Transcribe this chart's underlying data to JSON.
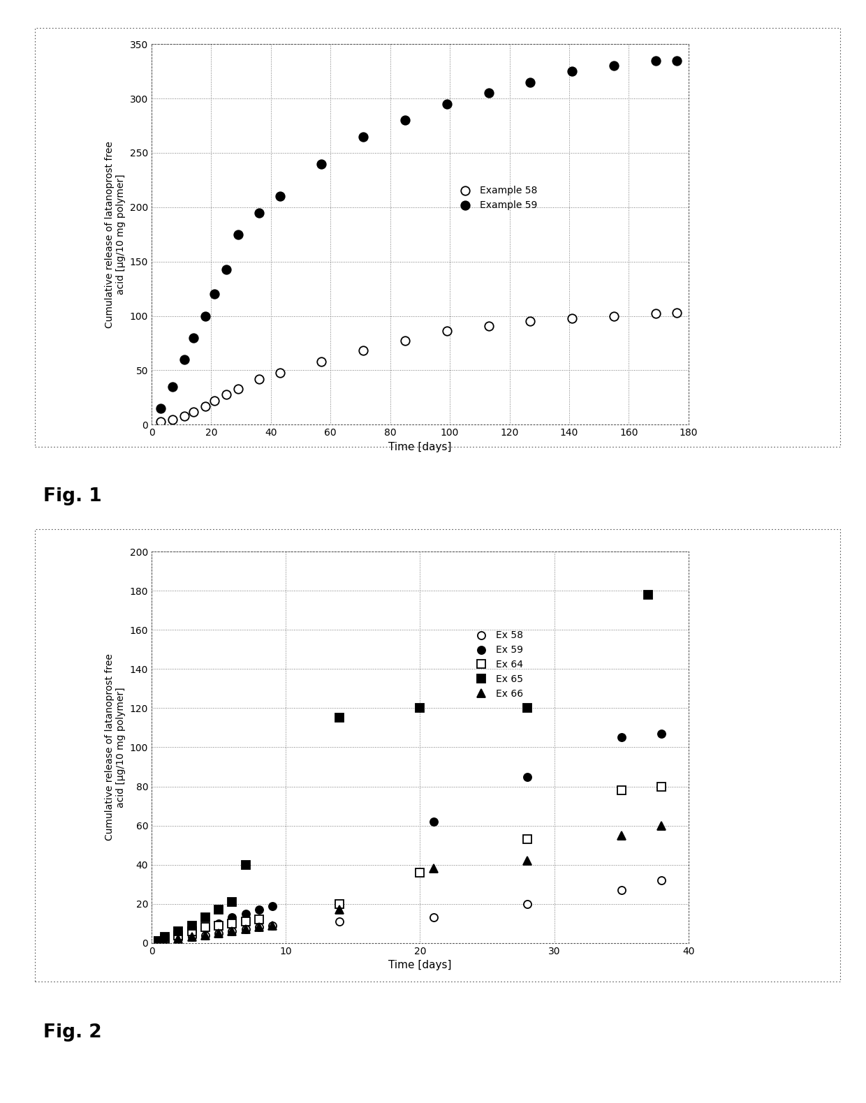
{
  "fig1": {
    "ex58_x": [
      3,
      7,
      11,
      14,
      18,
      21,
      25,
      29,
      36,
      43,
      57,
      71,
      85,
      99,
      113,
      127,
      141,
      155,
      169,
      176
    ],
    "ex58_y": [
      3,
      5,
      8,
      12,
      17,
      22,
      28,
      33,
      42,
      48,
      58,
      68,
      77,
      86,
      91,
      95,
      98,
      100,
      102,
      103
    ],
    "ex59_x": [
      3,
      7,
      11,
      14,
      18,
      21,
      25,
      29,
      36,
      43,
      57,
      71,
      85,
      99,
      113,
      127,
      141,
      155,
      169,
      176
    ],
    "ex59_y": [
      15,
      35,
      60,
      80,
      100,
      120,
      143,
      175,
      195,
      210,
      240,
      265,
      280,
      295,
      305,
      315,
      325,
      330,
      335,
      335
    ],
    "ylabel": "Cumulative release of latanoprost free\nacid [µg/10 mg polymer]",
    "xlabel": "Time [days]",
    "xlim": [
      0,
      180
    ],
    "ylim": [
      0,
      350
    ],
    "xticks": [
      0,
      20,
      40,
      60,
      80,
      100,
      120,
      140,
      160,
      180
    ],
    "yticks": [
      0,
      50,
      100,
      150,
      200,
      250,
      300,
      350
    ],
    "legend_labels": [
      "Example 58",
      "Example 59"
    ]
  },
  "fig2": {
    "ex58_x": [
      0.5,
      1,
      2,
      3,
      4,
      5,
      6,
      7,
      8,
      9,
      14,
      21,
      28,
      35,
      38
    ],
    "ex58_y": [
      0,
      1,
      2,
      3,
      4,
      5,
      6,
      7,
      8,
      9,
      11,
      13,
      20,
      27,
      32
    ],
    "ex59_x": [
      0.5,
      1,
      2,
      3,
      4,
      5,
      6,
      7,
      8,
      9,
      21,
      28,
      35,
      38
    ],
    "ex59_y": [
      1,
      2,
      4,
      6,
      8,
      10,
      13,
      15,
      17,
      19,
      62,
      85,
      105,
      107
    ],
    "ex64_x": [
      0.5,
      1,
      2,
      3,
      4,
      5,
      6,
      7,
      8,
      14,
      20,
      28,
      35,
      38
    ],
    "ex64_y": [
      1,
      2,
      4,
      6,
      8,
      9,
      10,
      11,
      12,
      20,
      36,
      53,
      78,
      80
    ],
    "ex65_x": [
      0.5,
      1,
      2,
      3,
      4,
      5,
      6,
      7,
      14,
      20,
      28,
      37
    ],
    "ex65_y": [
      1,
      3,
      6,
      9,
      13,
      17,
      21,
      40,
      115,
      120,
      120,
      178
    ],
    "ex66_x": [
      0.5,
      1,
      2,
      3,
      4,
      5,
      6,
      7,
      8,
      9,
      14,
      21,
      28,
      35,
      38
    ],
    "ex66_y": [
      0,
      1,
      2,
      3,
      4,
      5,
      6,
      7,
      8,
      9,
      17,
      38,
      42,
      55,
      60
    ],
    "ylabel": "Cumulative release of latanoprost free\nacid [µg/10 mg polymer]",
    "xlabel": "Time [days]",
    "xlim": [
      0,
      40
    ],
    "ylim": [
      0,
      200
    ],
    "xticks": [
      0,
      10,
      20,
      30,
      40
    ],
    "yticks": [
      0,
      20,
      40,
      60,
      80,
      100,
      120,
      140,
      160,
      180,
      200
    ],
    "legend_labels": [
      "Ex 58",
      "Ex 59",
      "Ex 64",
      "Ex 65",
      "Ex 66"
    ]
  },
  "fig1_label": "Fig. 1",
  "fig2_label": "Fig. 2",
  "bg_color": "#ffffff",
  "border_color": "#555555",
  "grid_color": "#777777",
  "marker_size1": 9,
  "marker_size2": 8
}
